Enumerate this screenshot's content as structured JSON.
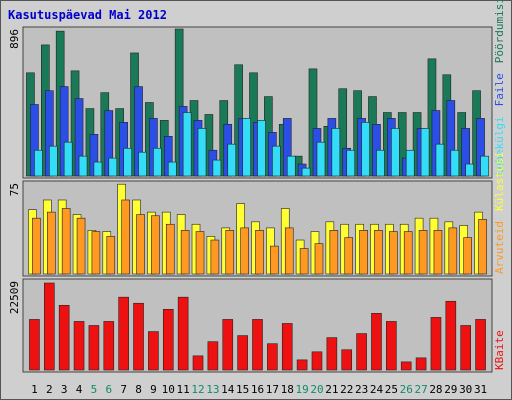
{
  "chart_data": [
    {
      "type": "bar",
      "title": "Kasutuspäevad Mai 2012",
      "ylim": [
        0,
        896
      ],
      "yticks": [
        896
      ],
      "series": [
        {
          "name": "Pöördumisi",
          "color": "#1a7a58",
          "values": [
            629,
            799,
            883,
            641,
            411,
            508,
            411,
            750,
            448,
            339,
            896,
            460,
            375,
            460,
            678,
            629,
            484,
            315,
            121,
            653,
            303,
            532,
            520,
            484,
            387,
            387,
            387,
            714,
            617,
            387,
            520
          ]
        },
        {
          "name": "Faile",
          "color": "#2a4ee6",
          "values": [
            436,
            520,
            545,
            472,
            254,
            399,
            327,
            545,
            351,
            242,
            424,
            339,
            157,
            315,
            351,
            327,
            266,
            351,
            73,
            290,
            351,
            169,
            351,
            315,
            351,
            109,
            290,
            399,
            460,
            290,
            351
          ]
        },
        {
          "name": "Lehekülgi",
          "color": "#33ddf8",
          "values": [
            157,
            182,
            206,
            121,
            85,
            109,
            169,
            145,
            169,
            85,
            387,
            290,
            97,
            194,
            351,
            339,
            182,
            121,
            48,
            206,
            290,
            157,
            327,
            157,
            290,
            157,
            290,
            194,
            157,
            73,
            121
          ]
        }
      ]
    },
    {
      "type": "bar",
      "ylim": [
        0,
        75
      ],
      "yticks": [
        75
      ],
      "series": [
        {
          "name": "Külastusi",
          "color": "#ffff33",
          "values": [
            53,
            61,
            61,
            49,
            36,
            35,
            74,
            61,
            51,
            51,
            49,
            41,
            31,
            38,
            58,
            43,
            38,
            54,
            28,
            35,
            43,
            41,
            41,
            41,
            41,
            41,
            46,
            46,
            43,
            40,
            51
          ]
        },
        {
          "name": "Arvuteid",
          "color": "#ff9922",
          "values": [
            46,
            51,
            54,
            46,
            35,
            31,
            61,
            49,
            48,
            41,
            36,
            35,
            28,
            36,
            38,
            36,
            23,
            38,
            21,
            25,
            36,
            30,
            36,
            36,
            35,
            35,
            36,
            36,
            38,
            30,
            45
          ]
        }
      ]
    },
    {
      "type": "bar",
      "ylim": [
        0,
        22509
      ],
      "yticks": [
        22509
      ],
      "categories": [
        "1",
        "2",
        "3",
        "4",
        "5",
        "6",
        "7",
        "8",
        "9",
        "10",
        "11",
        "12",
        "13",
        "14",
        "15",
        "16",
        "17",
        "18",
        "19",
        "20",
        "21",
        "22",
        "23",
        "24",
        "25",
        "26",
        "27",
        "28",
        "29",
        "30",
        "31"
      ],
      "category_colors": [
        "#000000",
        "#000000",
        "#000000",
        "#000000",
        "#138a6b",
        "#138a6b",
        "#000000",
        "#000000",
        "#000000",
        "#000000",
        "#000000",
        "#138a6b",
        "#138a6b",
        "#000000",
        "#000000",
        "#000000",
        "#000000",
        "#000000",
        "#138a6b",
        "#138a6b",
        "#000000",
        "#000000",
        "#000000",
        "#000000",
        "#000000",
        "#138a6b",
        "#138a6b",
        "#000000",
        "#000000",
        "#000000",
        "#000000"
      ],
      "series": [
        {
          "name": "KBaite",
          "color": "#ee1111",
          "values": [
            12790,
            22000,
            16370,
            12280,
            11260,
            12280,
            18420,
            16880,
            9720,
            15350,
            18420,
            3580,
            7160,
            12790,
            8700,
            12790,
            6650,
            11770,
            2560,
            4600,
            8190,
            5120,
            9210,
            14330,
            12280,
            2050,
            3070,
            13300,
            17390,
            11260,
            12790
          ]
        }
      ]
    }
  ]
}
